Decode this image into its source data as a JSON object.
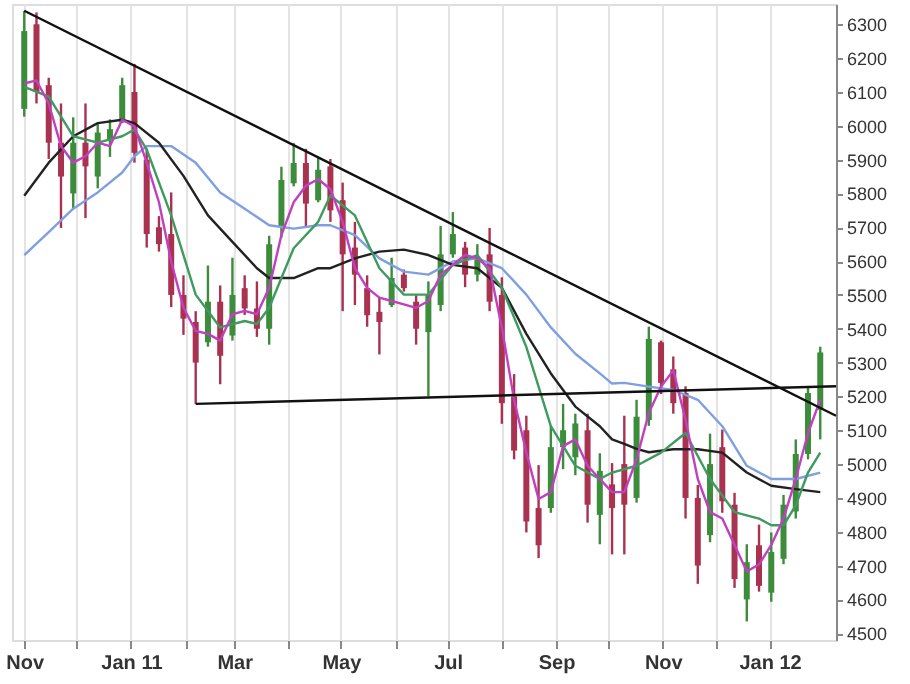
{
  "chart_data": {
    "type": "candlestick",
    "x": [
      "2010-11-01",
      "2010-11-08",
      "2010-11-15",
      "2010-11-22",
      "2010-11-29",
      "2010-12-06",
      "2010-12-13",
      "2010-12-20",
      "2010-12-27",
      "2011-01-03",
      "2011-01-10",
      "2011-01-17",
      "2011-01-24",
      "2011-01-31",
      "2011-02-07",
      "2011-02-14",
      "2011-02-21",
      "2011-02-28",
      "2011-03-07",
      "2011-03-14",
      "2011-03-21",
      "2011-03-28",
      "2011-04-04",
      "2011-04-11",
      "2011-04-18",
      "2011-04-25",
      "2011-05-02",
      "2011-05-09",
      "2011-05-16",
      "2011-05-23",
      "2011-05-30",
      "2011-06-06",
      "2011-06-13",
      "2011-06-20",
      "2011-06-27",
      "2011-07-04",
      "2011-07-11",
      "2011-07-18",
      "2011-07-25",
      "2011-08-01",
      "2011-08-08",
      "2011-08-15",
      "2011-08-22",
      "2011-08-29",
      "2011-09-05",
      "2011-09-12",
      "2011-09-19",
      "2011-09-26",
      "2011-10-03",
      "2011-10-10",
      "2011-10-17",
      "2011-10-24",
      "2011-10-31",
      "2011-11-07",
      "2011-11-14",
      "2011-11-21",
      "2011-11-28",
      "2011-12-05",
      "2011-12-12",
      "2011-12-19",
      "2011-12-26",
      "2012-01-02",
      "2012-01-09",
      "2012-01-16",
      "2012-01-23",
      "2012-01-30"
    ],
    "ohlc": [
      [
        6050,
        6339,
        6027,
        6280
      ],
      [
        6300,
        6335,
        6066,
        6100
      ],
      [
        6120,
        6142,
        5902,
        5950
      ],
      [
        5950,
        6066,
        5698,
        5850
      ],
      [
        5800,
        6025,
        5756,
        5950
      ],
      [
        5950,
        6066,
        5727,
        5880
      ],
      [
        5850,
        6008,
        5815,
        5980
      ],
      [
        5960,
        6019,
        5908,
        5990
      ],
      [
        6010,
        6142,
        6008,
        6120
      ],
      [
        6100,
        6183,
        5891,
        5920
      ],
      [
        5900,
        5932,
        5640,
        5680
      ],
      [
        5700,
        5733,
        5628,
        5650
      ],
      [
        5680,
        5803,
        5464,
        5500
      ],
      [
        5500,
        5558,
        5382,
        5430
      ],
      [
        5420,
        5452,
        5178,
        5300
      ],
      [
        5360,
        5587,
        5347,
        5480
      ],
      [
        5480,
        5528,
        5236,
        5320
      ],
      [
        5380,
        5610,
        5365,
        5500
      ],
      [
        5520,
        5558,
        5441,
        5460
      ],
      [
        5460,
        5540,
        5376,
        5400
      ],
      [
        5400,
        5675,
        5353,
        5650
      ],
      [
        5700,
        5879,
        5669,
        5840
      ],
      [
        5830,
        5949,
        5821,
        5890
      ],
      [
        5890,
        5932,
        5698,
        5770
      ],
      [
        5780,
        5908,
        5774,
        5870
      ],
      [
        5880,
        5902,
        5716,
        5750
      ],
      [
        5780,
        5832,
        5452,
        5620
      ],
      [
        5640,
        5716,
        5470,
        5560
      ],
      [
        5520,
        5558,
        5406,
        5440
      ],
      [
        5450,
        5493,
        5324,
        5420
      ],
      [
        5470,
        5610,
        5464,
        5550
      ],
      [
        5560,
        5575,
        5510,
        5520
      ],
      [
        5480,
        5499,
        5353,
        5400
      ],
      [
        5390,
        5540,
        5201,
        5500
      ],
      [
        5470,
        5704,
        5452,
        5620
      ],
      [
        5620,
        5745,
        5610,
        5680
      ],
      [
        5640,
        5657,
        5523,
        5560
      ],
      [
        5560,
        5650,
        5540,
        5610
      ],
      [
        5620,
        5698,
        5452,
        5480
      ],
      [
        5500,
        5552,
        5119,
        5180
      ],
      [
        5200,
        5266,
        5014,
        5040
      ],
      [
        5100,
        5143,
        4798,
        4830
      ],
      [
        4870,
        4997,
        4722,
        4760
      ],
      [
        4870,
        5113,
        4856,
        5050
      ],
      [
        5050,
        5178,
        4985,
        5100
      ],
      [
        5020,
        5149,
        4967,
        5120
      ],
      [
        5100,
        5149,
        4827,
        4880
      ],
      [
        4850,
        5032,
        4763,
        4980
      ],
      [
        4940,
        5003,
        4733,
        4870
      ],
      [
        5000,
        5143,
        4733,
        4880
      ],
      [
        4900,
        5190,
        4886,
        5140
      ],
      [
        5130,
        5406,
        5113,
        5370
      ],
      [
        5360,
        5365,
        5207,
        5240
      ],
      [
        5280,
        5318,
        5149,
        5180
      ],
      [
        5210,
        5230,
        4839,
        4900
      ],
      [
        4900,
        4938,
        4646,
        4700
      ],
      [
        4790,
        5090,
        4769,
        5000
      ],
      [
        5050,
        5102,
        4856,
        4890
      ],
      [
        4880,
        4915,
        4634,
        4660
      ],
      [
        4600,
        4763,
        4535,
        4710
      ],
      [
        4760,
        4821,
        4623,
        4640
      ],
      [
        4620,
        4798,
        4593,
        4740
      ],
      [
        4720,
        4909,
        4704,
        4880
      ],
      [
        4860,
        5073,
        4839,
        5030
      ],
      [
        5030,
        5230,
        5014,
        5210
      ],
      [
        5160,
        5347,
        5073,
        5330
      ]
    ],
    "colors": [
      "#3c8c3c",
      "#a83250",
      "#a83250",
      "#a83250",
      "#3c8c3c",
      "#a83250",
      "#3c8c3c",
      "#3c8c3c",
      "#3c8c3c",
      "#a83250",
      "#a83250",
      "#a83250",
      "#a83250",
      "#a83250",
      "#a83250",
      "#3c8c3c",
      "#a83250",
      "#3c8c3c",
      "#a83250",
      "#a83250",
      "#3c8c3c",
      "#3c8c3c",
      "#3c8c3c",
      "#a83250",
      "#3c8c3c",
      "#a83250",
      "#a83250",
      "#a83250",
      "#a83250",
      "#a83250",
      "#3c8c3c",
      "#a83250",
      "#a83250",
      "#3c8c3c",
      "#3c8c3c",
      "#3c8c3c",
      "#a83250",
      "#3c8c3c",
      "#a83250",
      "#a83250",
      "#a83250",
      "#a83250",
      "#a83250",
      "#3c8c3c",
      "#3c8c3c",
      "#3c8c3c",
      "#a83250",
      "#3c8c3c",
      "#a83250",
      "#a83250",
      "#3c8c3c",
      "#3c8c3c",
      "#a83250",
      "#a83250",
      "#a83250",
      "#a83250",
      "#3c8c3c",
      "#a83250",
      "#a83250",
      "#3c8c3c",
      "#a83250",
      "#3c8c3c",
      "#3c8c3c",
      "#3c8c3c",
      "#3c8c3c",
      "#3c8c3c"
    ],
    "series": [
      {
        "type": "line",
        "color": "#7f9fe0",
        "x": [
          "2010-11-01",
          "2010-11-15",
          "2010-11-29",
          "2010-12-13",
          "2010-12-27",
          "2011-01-03",
          "2011-01-10",
          "2011-01-24",
          "2011-02-07",
          "2011-02-21",
          "2011-03-07",
          "2011-03-21",
          "2011-04-04",
          "2011-04-18",
          "2011-04-25",
          "2011-05-09",
          "2011-05-23",
          "2011-06-06",
          "2011-06-20",
          "2011-07-04",
          "2011-07-18",
          "2011-08-01",
          "2011-08-15",
          "2011-08-29",
          "2011-09-12",
          "2011-09-26",
          "2011-10-03",
          "2011-10-10",
          "2011-10-24",
          "2011-11-07",
          "2011-11-21",
          "2011-12-05",
          "2011-12-19",
          "2012-01-02",
          "2012-01-16",
          "2012-01-30"
        ],
        "values": [
          5618,
          5686,
          5755,
          5803,
          5862,
          5910,
          5940,
          5940,
          5891,
          5803,
          5755,
          5706,
          5696,
          5706,
          5706,
          5677,
          5608,
          5569,
          5560,
          5599,
          5608,
          5579,
          5501,
          5404,
          5326,
          5268,
          5238,
          5240,
          5229,
          5219,
          5190,
          5112,
          4995,
          4956,
          4956,
          4975
        ]
      },
      {
        "type": "line",
        "color": "#222222",
        "x": [
          "2010-11-01",
          "2010-11-15",
          "2010-11-29",
          "2010-12-13",
          "2010-12-27",
          "2011-01-03",
          "2011-01-17",
          "2011-01-31",
          "2011-02-14",
          "2011-02-28",
          "2011-03-14",
          "2011-03-21",
          "2011-04-04",
          "2011-04-18",
          "2011-04-25",
          "2011-05-09",
          "2011-05-23",
          "2011-06-06",
          "2011-06-20",
          "2011-07-04",
          "2011-07-18",
          "2011-08-01",
          "2011-08-15",
          "2011-08-29",
          "2011-09-12",
          "2011-09-26",
          "2011-10-03",
          "2011-10-10",
          "2011-10-17",
          "2011-10-24",
          "2011-11-07",
          "2011-11-21",
          "2011-12-05",
          "2011-12-19",
          "2012-01-02",
          "2012-01-16",
          "2012-01-30"
        ],
        "values": [
          5793,
          5891,
          5969,
          6008,
          6018,
          6008,
          5950,
          5852,
          5735,
          5657,
          5579,
          5550,
          5550,
          5579,
          5579,
          5608,
          5628,
          5634,
          5618,
          5589,
          5579,
          5521,
          5385,
          5268,
          5170,
          5112,
          5073,
          5060,
          5045,
          5035,
          5044,
          5044,
          5034,
          4975,
          4936,
          4926,
          4917
        ]
      },
      {
        "type": "line",
        "color": "#3f9a5f",
        "x": [
          "2010-11-01",
          "2010-11-15",
          "2010-11-29",
          "2010-12-13",
          "2010-12-27",
          "2011-01-03",
          "2011-01-10",
          "2011-01-24",
          "2011-02-07",
          "2011-02-21",
          "2011-03-07",
          "2011-03-14",
          "2011-03-21",
          "2011-04-04",
          "2011-04-18",
          "2011-04-25",
          "2011-05-09",
          "2011-05-23",
          "2011-06-06",
          "2011-06-20",
          "2011-07-04",
          "2011-07-18",
          "2011-08-01",
          "2011-08-15",
          "2011-08-29",
          "2011-09-12",
          "2011-09-26",
          "2011-10-03",
          "2011-10-17",
          "2011-10-31",
          "2011-11-14",
          "2011-11-28",
          "2011-12-12",
          "2011-12-26",
          "2012-01-02",
          "2012-01-09",
          "2012-01-16",
          "2012-01-23",
          "2012-01-30"
        ],
        "values": [
          6115,
          6086,
          5969,
          5950,
          5969,
          5989,
          5930,
          5735,
          5501,
          5404,
          5423,
          5414,
          5462,
          5638,
          5716,
          5794,
          5735,
          5579,
          5501,
          5501,
          5589,
          5618,
          5521,
          5346,
          5112,
          4995,
          4956,
          4975,
          4995,
          5034,
          5092,
          4956,
          4858,
          4839,
          4819,
          4819,
          4878,
          4975,
          5034
        ]
      },
      {
        "type": "line",
        "color": "#c040c0",
        "values": [
          6125,
          6134,
          6066,
          5940,
          5891,
          5910,
          5950,
          5940,
          6018,
          5998,
          5891,
          5774,
          5599,
          5462,
          5394,
          5385,
          5365,
          5443,
          5453,
          5443,
          5521,
          5677,
          5774,
          5823,
          5842,
          5813,
          5716,
          5579,
          5521,
          5492,
          5482,
          5472,
          5462,
          5482,
          5560,
          5589,
          5618,
          5608,
          5579,
          5404,
          5190,
          5034,
          4897,
          4917,
          5053,
          5073,
          4995,
          4956,
          4917,
          4917,
          5014,
          5151,
          5229,
          5277,
          5131,
          4956,
          4858,
          4839,
          4761,
          4683,
          4703,
          4761,
          4839,
          4956,
          5092,
          5190
        ]
      },
      {
        "type": "line",
        "color": "#111111",
        "x": [
          "2010-11-01",
          "2012-02-08"
        ],
        "values": [
          6340,
          5143
        ]
      },
      {
        "type": "line",
        "color": "#111111",
        "x": [
          "2011-02-07",
          "2012-02-08"
        ],
        "values": [
          5178,
          5230
        ]
      }
    ],
    "xlim": [
      "2010-10-25",
      "2012-02-08"
    ],
    "xticks": [
      {
        "value": "2010-11-01",
        "label": "Nov"
      },
      {
        "value": "2010-12-01",
        "label": null
      },
      {
        "value": "2011-01-01",
        "label": "Jan 11"
      },
      {
        "value": "2011-02-01",
        "label": null
      },
      {
        "value": "2011-03-01",
        "label": "Mar"
      },
      {
        "value": "2011-04-01",
        "label": null
      },
      {
        "value": "2011-05-01",
        "label": "May"
      },
      {
        "value": "2011-06-01",
        "label": null
      },
      {
        "value": "2011-07-01",
        "label": "Jul"
      },
      {
        "value": "2011-08-01",
        "label": null
      },
      {
        "value": "2011-09-01",
        "label": "Sep"
      },
      {
        "value": "2011-10-01",
        "label": null
      },
      {
        "value": "2011-11-01",
        "label": "Nov"
      },
      {
        "value": "2011-12-01",
        "label": null
      },
      {
        "value": "2012-01-01",
        "label": "Jan 12"
      }
    ],
    "ylim": [
      4480,
      6360
    ],
    "yticks": [
      4500,
      4600,
      4700,
      4800,
      4900,
      5000,
      5100,
      5200,
      5300,
      5400,
      5500,
      5600,
      5700,
      5800,
      5900,
      6000,
      6100,
      6200,
      6300
    ],
    "grid": "x"
  }
}
